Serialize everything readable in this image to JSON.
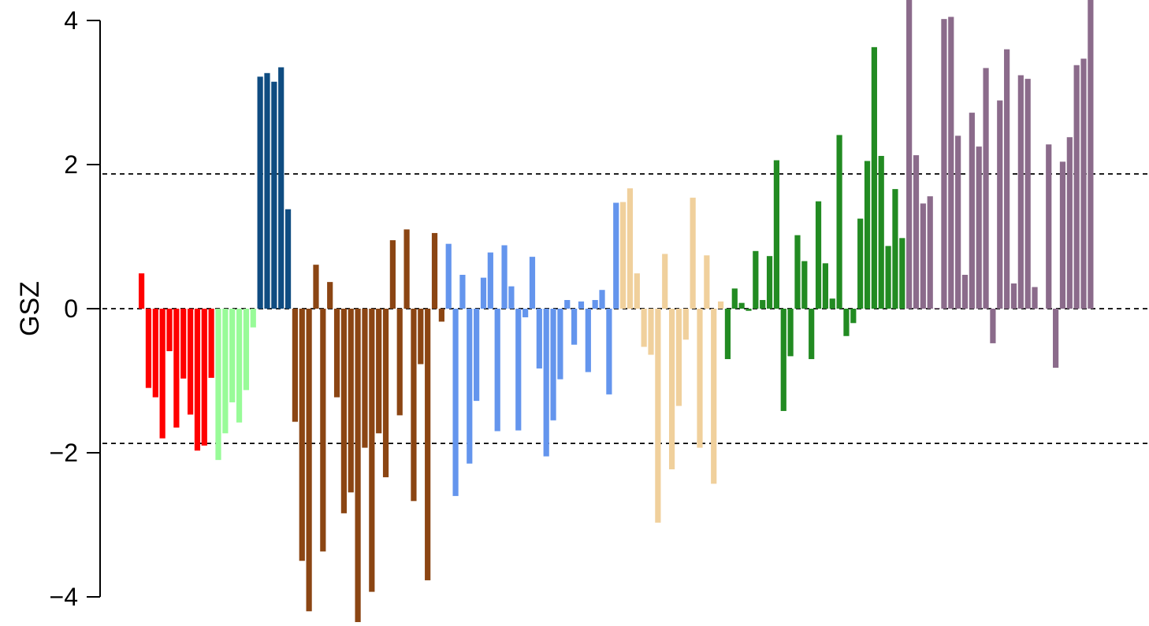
{
  "chart_data": {
    "type": "bar",
    "title": "",
    "xlabel": "",
    "ylabel": "GSZ",
    "ylim": [
      -4.4,
      4.3
    ],
    "yticks": [
      -4,
      -2,
      0,
      2,
      4
    ],
    "ytick_labels": [
      "−4",
      "−2",
      "0",
      "2",
      "4"
    ],
    "grid": false,
    "legend": "none",
    "reference_lines": [
      {
        "y": 1.87,
        "style": "dashed",
        "color": "#000000"
      },
      {
        "y": 0,
        "style": "dashed",
        "color": "#000000"
      },
      {
        "y": -1.87,
        "style": "dashed",
        "color": "#000000"
      }
    ],
    "series": [
      {
        "color": "#ff0000",
        "values": [
          0.49,
          -1.1,
          -1.23,
          -1.8,
          -0.59,
          -1.65,
          -0.97,
          -1.47,
          -1.97,
          -1.9,
          -0.96
        ]
      },
      {
        "color": "#98fb98",
        "values": [
          -2.1,
          -1.73,
          -1.3,
          -1.58,
          -1.13,
          -0.26
        ]
      },
      {
        "color": "#0f4c81",
        "values": [
          3.22,
          3.27,
          3.15,
          3.35,
          1.38
        ]
      },
      {
        "color": "#8b4513",
        "values": [
          -1.57,
          -3.5,
          -4.2,
          0.61,
          -3.37,
          0.37,
          -1.23,
          -2.84,
          -2.55,
          -4.35,
          -1.93,
          -3.93,
          -1.73,
          -2.34,
          0.95,
          -1.48,
          1.1,
          -2.67,
          -0.77,
          -3.77,
          1.05,
          -0.18
        ]
      },
      {
        "color": "#6495ed",
        "values": [
          0.9,
          -2.6,
          0.47,
          -2.15,
          -1.28,
          0.43,
          0.78,
          -1.7,
          0.88,
          0.31,
          -1.69,
          -0.12,
          0.72,
          -0.83,
          -2.05,
          -1.55,
          -0.98,
          0.12,
          -0.5,
          0.1,
          -0.88,
          0.12,
          0.26,
          -1.19,
          1.47
        ]
      },
      {
        "color": "#f0d09c",
        "values": [
          1.48,
          1.67,
          0.49,
          -0.53,
          -0.64,
          -2.97,
          0.76,
          -2.23,
          -1.35,
          -0.43,
          1.54,
          -1.93,
          0.74,
          -2.43,
          0.1
        ]
      },
      {
        "color": "#228b22",
        "values": [
          -0.7,
          0.28,
          0.08,
          -0.03,
          0.8,
          0.12,
          0.73,
          2.06,
          -1.42,
          -0.66,
          1.02,
          0.66,
          -0.7,
          1.49,
          0.63,
          0.14,
          2.41,
          -0.38,
          -0.2,
          1.25,
          2.05,
          3.63,
          2.12,
          0.87,
          1.66,
          0.98
        ]
      },
      {
        "color": "#8b6b8b",
        "values": [
          4.3,
          2.13,
          1.46,
          1.56,
          0.01,
          4.02,
          4.05,
          2.4,
          0.47,
          2.72,
          2.25,
          3.34,
          -0.48,
          2.89,
          3.6,
          0.35,
          3.24,
          3.19,
          0.3,
          0.0,
          2.28,
          -0.82,
          2.04,
          2.38,
          3.38,
          3.47,
          4.3
        ]
      }
    ]
  }
}
